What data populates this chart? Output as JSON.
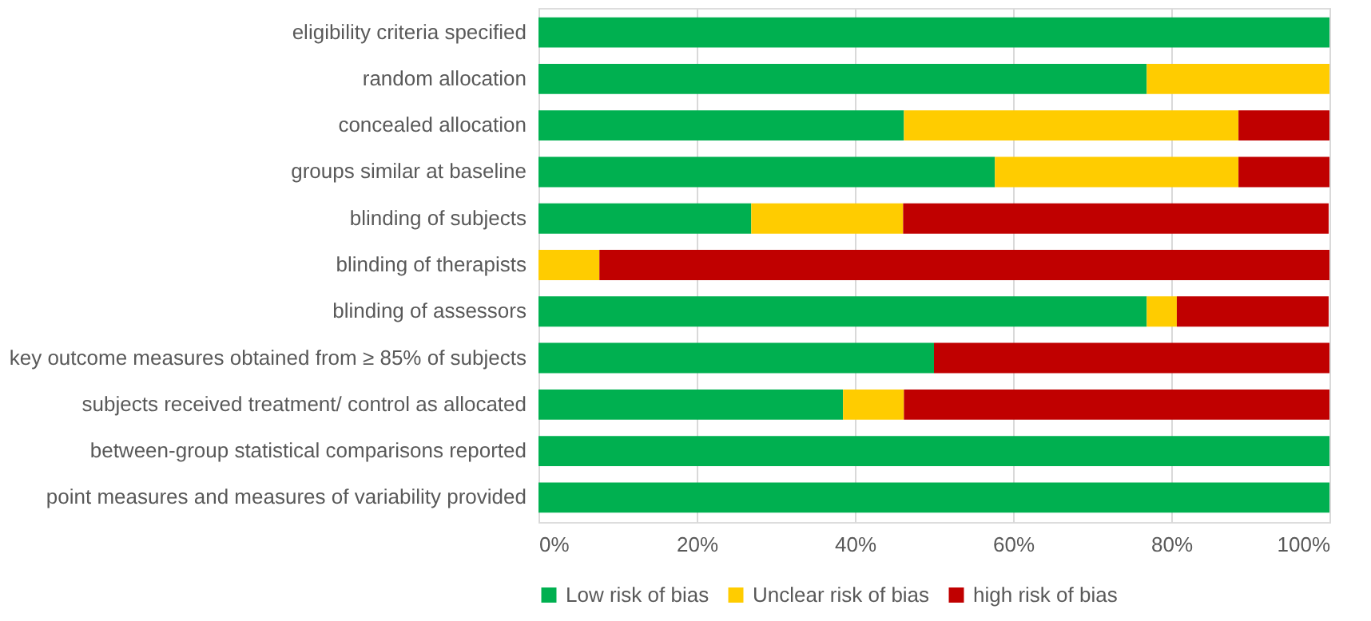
{
  "chart_data": {
    "type": "bar",
    "orientation": "horizontal",
    "stacked": true,
    "categories": [
      "eligibility criteria specified",
      "random allocation",
      "concealed allocation",
      "groups similar at baseline",
      "blinding of subjects",
      "blinding of therapists",
      "blinding of assessors",
      "key outcome measures obtained from ≥ 85% of subjects",
      "subjects received treatment/ control as allocated",
      "between-group statistical comparisons reported",
      "point measures and measures of variability provided"
    ],
    "series": [
      {
        "name": "Low risk of bias",
        "color": "#00b050",
        "values": [
          100,
          76.9,
          46.2,
          57.7,
          26.9,
          0,
          76.9,
          50,
          38.5,
          100,
          100
        ]
      },
      {
        "name": "Unclear risk of bias",
        "color": "#ffcc00",
        "values": [
          0,
          23.1,
          42.3,
          30.8,
          19.2,
          7.7,
          3.8,
          0,
          7.7,
          0,
          0
        ]
      },
      {
        "name": "high risk of bias",
        "color": "#c00000",
        "values": [
          0,
          0,
          11.5,
          11.5,
          53.8,
          92.3,
          19.2,
          50,
          53.8,
          0,
          0
        ]
      }
    ],
    "xlim": [
      0,
      100
    ],
    "xticks": [
      {
        "value": 0,
        "label": "0%"
      },
      {
        "value": 20,
        "label": "20%"
      },
      {
        "value": 40,
        "label": "40%"
      },
      {
        "value": 60,
        "label": "60%"
      },
      {
        "value": 80,
        "label": "80%"
      },
      {
        "value": 100,
        "label": "100%"
      }
    ],
    "grid": "x",
    "legend": "bottom"
  }
}
